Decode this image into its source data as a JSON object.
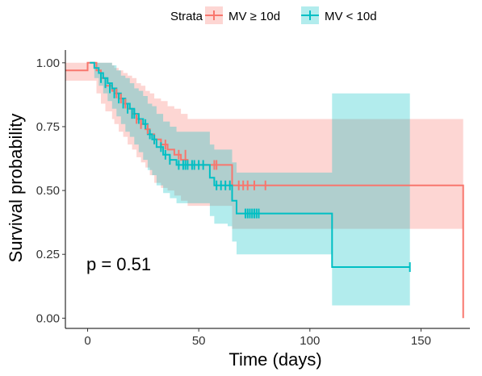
{
  "chart_data": {
    "type": "line",
    "subtype": "kaplan-meier survival curve with confidence bands",
    "xlabel": "Time (days)",
    "ylabel": "Survival probability",
    "xlim": [
      -10,
      172
    ],
    "ylim": [
      -0.04,
      1.05
    ],
    "x_ticks": [
      0,
      50,
      100,
      150
    ],
    "y_ticks": [
      0.0,
      0.25,
      0.5,
      0.75,
      1.0
    ],
    "y_tick_labels": [
      "0.00",
      "0.25",
      "0.50",
      "0.75",
      "1.00"
    ],
    "grid": false,
    "legend": {
      "title": "Strata",
      "placement": "top",
      "entries": [
        "MV ≥ 10d",
        "MV < 10d"
      ]
    },
    "annotation": "p = 0.51",
    "series": [
      {
        "name": "MV ≥ 10d",
        "color": "#F8766D",
        "band_color": "#F8766D",
        "x": [
          -10,
          0,
          4,
          6,
          8,
          11,
          12,
          14,
          16,
          18,
          20,
          22,
          24,
          26,
          28,
          30,
          33,
          36,
          39,
          42,
          45,
          48,
          57,
          63,
          65,
          110,
          169,
          169
        ],
        "y": [
          0.97,
          1.0,
          0.97,
          0.94,
          0.91,
          0.89,
          0.88,
          0.86,
          0.84,
          0.82,
          0.8,
          0.78,
          0.76,
          0.74,
          0.72,
          0.7,
          0.68,
          0.66,
          0.64,
          0.62,
          0.6,
          0.6,
          0.6,
          0.6,
          0.52,
          0.52,
          0.52,
          0.0
        ],
        "lower": [
          0.93,
          0.93,
          0.88,
          0.84,
          0.81,
          0.78,
          0.76,
          0.73,
          0.71,
          0.68,
          0.66,
          0.63,
          0.61,
          0.59,
          0.56,
          0.53,
          0.51,
          0.5,
          0.48,
          0.46,
          0.44,
          0.44,
          0.44,
          0.44,
          0.35,
          0.35,
          0.35,
          0.35
        ],
        "upper": [
          1.0,
          1.0,
          1.0,
          1.0,
          1.0,
          0.99,
          0.98,
          0.97,
          0.96,
          0.95,
          0.94,
          0.92,
          0.91,
          0.89,
          0.88,
          0.86,
          0.85,
          0.83,
          0.82,
          0.8,
          0.78,
          0.78,
          0.78,
          0.78,
          0.78,
          0.78,
          0.78,
          0.78
        ],
        "censored": [
          [
            13,
            0.88
          ],
          [
            15,
            0.86
          ],
          [
            17,
            0.84
          ],
          [
            20,
            0.8
          ],
          [
            22,
            0.78
          ],
          [
            24,
            0.76
          ],
          [
            27,
            0.74
          ],
          [
            30,
            0.7
          ],
          [
            33,
            0.68
          ],
          [
            35,
            0.68
          ],
          [
            41,
            0.64
          ],
          [
            44,
            0.64
          ],
          [
            57,
            0.6
          ],
          [
            58,
            0.6
          ],
          [
            68,
            0.52
          ],
          [
            70,
            0.52
          ],
          [
            72,
            0.52
          ],
          [
            75,
            0.52
          ],
          [
            80,
            0.52
          ]
        ]
      },
      {
        "name": "MV < 10d",
        "color": "#00BFC4",
        "band_color": "#00BFC4",
        "x": [
          1,
          3,
          5,
          7,
          9,
          11,
          13,
          15,
          17,
          19,
          21,
          23,
          25,
          27,
          29,
          31,
          34,
          37,
          40,
          44,
          48,
          55,
          57,
          59,
          63,
          65,
          67,
          69,
          110,
          110,
          145
        ],
        "y": [
          1.0,
          0.98,
          0.96,
          0.94,
          0.92,
          0.9,
          0.88,
          0.86,
          0.84,
          0.82,
          0.8,
          0.78,
          0.76,
          0.72,
          0.7,
          0.67,
          0.64,
          0.62,
          0.6,
          0.6,
          0.6,
          0.55,
          0.52,
          0.52,
          0.52,
          0.46,
          0.41,
          0.41,
          0.41,
          0.2,
          0.2
        ],
        "lower": [
          1.0,
          0.94,
          0.91,
          0.88,
          0.85,
          0.82,
          0.79,
          0.76,
          0.73,
          0.71,
          0.68,
          0.65,
          0.62,
          0.58,
          0.56,
          0.52,
          0.49,
          0.47,
          0.45,
          0.45,
          0.45,
          0.4,
          0.37,
          0.37,
          0.36,
          0.3,
          0.25,
          0.25,
          0.25,
          0.05,
          0.05
        ],
        "upper": [
          1.0,
          1.0,
          1.0,
          1.0,
          1.0,
          0.99,
          0.97,
          0.95,
          0.94,
          0.92,
          0.9,
          0.89,
          0.87,
          0.84,
          0.83,
          0.8,
          0.77,
          0.75,
          0.73,
          0.73,
          0.73,
          0.68,
          0.66,
          0.66,
          0.66,
          0.61,
          0.57,
          0.57,
          0.88,
          0.88,
          0.88
        ],
        "censored": [
          [
            6,
            0.94
          ],
          [
            8,
            0.92
          ],
          [
            10,
            0.9
          ],
          [
            12,
            0.88
          ],
          [
            14,
            0.86
          ],
          [
            16,
            0.84
          ],
          [
            18,
            0.82
          ],
          [
            20,
            0.8
          ],
          [
            21,
            0.8
          ],
          [
            23,
            0.78
          ],
          [
            26,
            0.76
          ],
          [
            28,
            0.72
          ],
          [
            30,
            0.7
          ],
          [
            33,
            0.67
          ],
          [
            35,
            0.64
          ],
          [
            37,
            0.62
          ],
          [
            41,
            0.6
          ],
          [
            43,
            0.6
          ],
          [
            44,
            0.6
          ],
          [
            45,
            0.6
          ],
          [
            47,
            0.6
          ],
          [
            48,
            0.6
          ],
          [
            50,
            0.6
          ],
          [
            52,
            0.6
          ],
          [
            58,
            0.52
          ],
          [
            60,
            0.52
          ],
          [
            62,
            0.52
          ],
          [
            64,
            0.52
          ],
          [
            71,
            0.41
          ],
          [
            72,
            0.41
          ],
          [
            73,
            0.41
          ],
          [
            74,
            0.41
          ],
          [
            75,
            0.41
          ],
          [
            76,
            0.41
          ],
          [
            77,
            0.41
          ],
          [
            145,
            0.2
          ]
        ]
      }
    ]
  }
}
